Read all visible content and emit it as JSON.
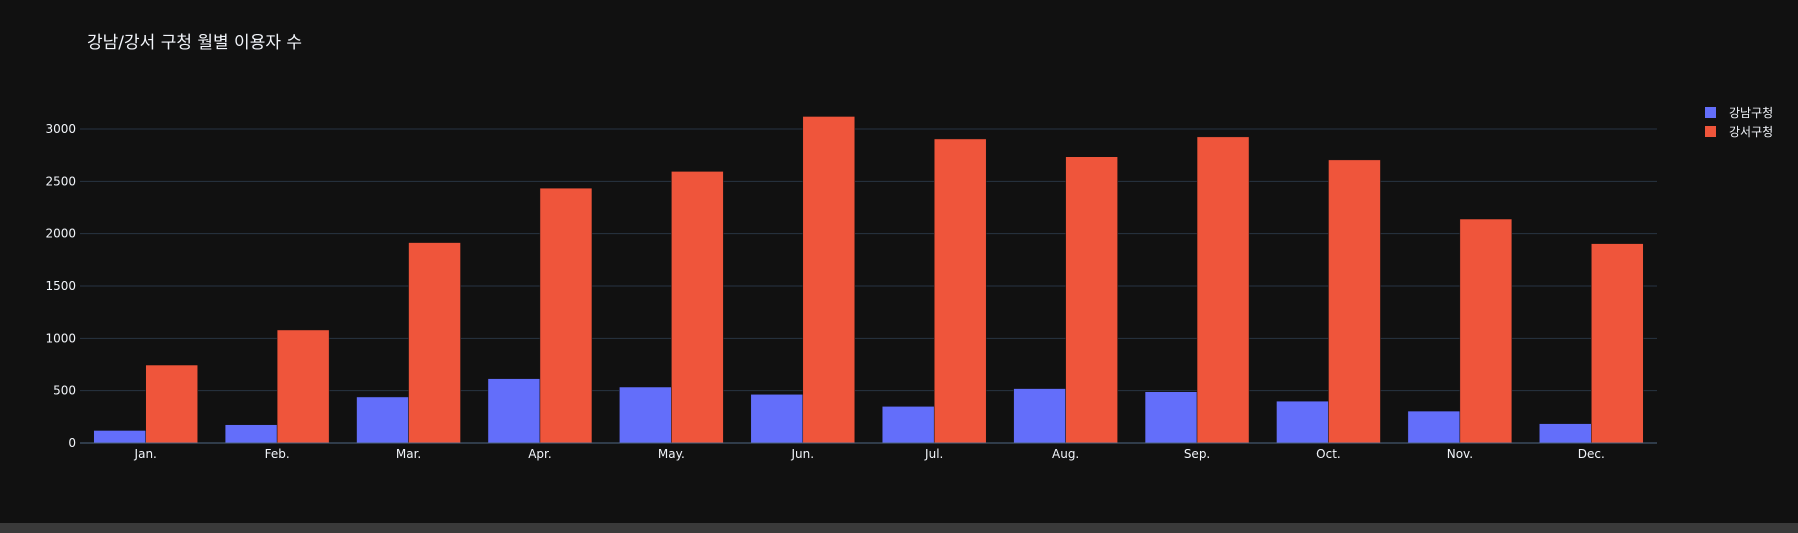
{
  "chart_data": {
    "type": "bar",
    "title": "강남/강서 구청 월별 이용자 수",
    "xlabel": "",
    "ylabel": "",
    "categories": [
      "Jan.",
      "Feb.",
      "Mar.",
      "Apr.",
      "May.",
      "Jun.",
      "Jul.",
      "Aug.",
      "Sep.",
      "Oct.",
      "Nov.",
      "Dec."
    ],
    "series": [
      {
        "name": "강남구청",
        "color": "#636efa",
        "values": [
          120,
          175,
          440,
          615,
          535,
          465,
          350,
          520,
          490,
          400,
          305,
          185
        ]
      },
      {
        "name": "강서구청",
        "color": "#ef553b",
        "values": [
          745,
          1080,
          1915,
          2435,
          2595,
          3120,
          2905,
          2735,
          2925,
          2705,
          2140,
          1905
        ]
      }
    ],
    "ylim": [
      0,
      3000
    ],
    "yticks": [
      0,
      500,
      1000,
      1500,
      2000,
      2500,
      3000
    ],
    "grid": true,
    "legend": "top-right"
  },
  "theme": {
    "background": "#111111",
    "grid": "#283442",
    "text": "#f2f5fa"
  }
}
